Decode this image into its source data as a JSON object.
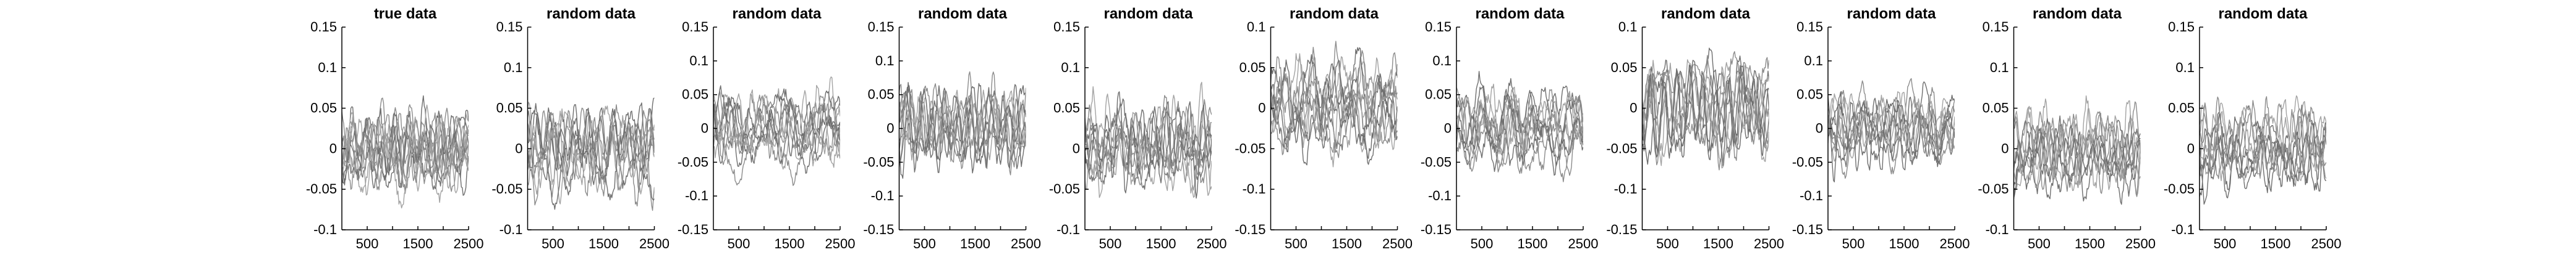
{
  "chart_data": [
    {
      "type": "line",
      "title": "true data",
      "xlim": [
        0,
        2500
      ],
      "ylim": [
        -0.1,
        0.15
      ],
      "xticks": [
        500,
        1000,
        1500,
        2000,
        2500
      ],
      "xtick_labels": [
        "500",
        "1500",
        "2500"
      ],
      "yticks": [
        -0.1,
        -0.05,
        0,
        0.05,
        0.1,
        0.15
      ],
      "ytick_labels": [
        "-0.1",
        "-0.05",
        "0",
        "0.05",
        "0.1",
        "0.15"
      ],
      "grid": false,
      "legend": "none",
      "n_series": 12,
      "seed": 11,
      "amplitude": 0.038,
      "color": "#7a7a7a"
    },
    {
      "type": "line",
      "title": "random data",
      "xlim": [
        0,
        2500
      ],
      "ylim": [
        -0.1,
        0.15
      ],
      "xticks": [
        500,
        1000,
        1500,
        2000,
        2500
      ],
      "xtick_labels": [
        "500",
        "1500",
        "2500"
      ],
      "yticks": [
        -0.1,
        -0.05,
        0,
        0.05,
        0.1,
        0.15
      ],
      "ytick_labels": [
        "-0.1",
        "-0.05",
        "0",
        "0.05",
        "0.1",
        "0.15"
      ],
      "grid": false,
      "legend": "none",
      "n_series": 10,
      "seed": 23,
      "amplitude": 0.04,
      "color": "#8a8a8a"
    },
    {
      "type": "line",
      "title": "random data",
      "xlim": [
        0,
        2500
      ],
      "ylim": [
        -0.15,
        0.15
      ],
      "xticks": [
        500,
        1000,
        1500,
        2000,
        2500
      ],
      "xtick_labels": [
        "500",
        "1500",
        "2500"
      ],
      "yticks": [
        -0.15,
        -0.1,
        -0.05,
        0,
        0.05,
        0.1,
        0.15
      ],
      "ytick_labels": [
        "-0.15",
        "-0.1",
        "-0.05",
        "0",
        "0.05",
        "0.1",
        "0.15"
      ],
      "grid": false,
      "legend": "none",
      "n_series": 10,
      "seed": 37,
      "amplitude": 0.045,
      "color": "#8a8a8a"
    },
    {
      "type": "line",
      "title": "random data",
      "xlim": [
        0,
        2500
      ],
      "ylim": [
        -0.15,
        0.15
      ],
      "xticks": [
        500,
        1000,
        1500,
        2000,
        2500
      ],
      "xtick_labels": [
        "500",
        "1500",
        "2500"
      ],
      "yticks": [
        -0.15,
        -0.1,
        -0.05,
        0,
        0.05,
        0.1,
        0.15
      ],
      "ytick_labels": [
        "-0.15",
        "-0.1",
        "-0.05",
        "0",
        "0.05",
        "0.1",
        "0.15"
      ],
      "grid": false,
      "legend": "none",
      "n_series": 10,
      "seed": 41,
      "amplitude": 0.045,
      "color": "#8a8a8a"
    },
    {
      "type": "line",
      "title": "random data",
      "xlim": [
        0,
        2500
      ],
      "ylim": [
        -0.1,
        0.15
      ],
      "xticks": [
        500,
        1000,
        1500,
        2000,
        2500
      ],
      "xtick_labels": [
        "500",
        "1500",
        "2500"
      ],
      "yticks": [
        -0.1,
        -0.05,
        0,
        0.05,
        0.1,
        0.15
      ],
      "ytick_labels": [
        "-0.1",
        "-0.05",
        "0",
        "0.05",
        "0.1",
        "0.15"
      ],
      "grid": false,
      "legend": "none",
      "n_series": 10,
      "seed": 53,
      "amplitude": 0.04,
      "color": "#8a8a8a"
    },
    {
      "type": "line",
      "title": "random data",
      "xlim": [
        0,
        2500
      ],
      "ylim": [
        -0.15,
        0.1
      ],
      "xticks": [
        500,
        1000,
        1500,
        2000,
        2500
      ],
      "xtick_labels": [
        "500",
        "1500",
        "2500"
      ],
      "yticks": [
        -0.15,
        -0.1,
        -0.05,
        0,
        0.05,
        0.1
      ],
      "ytick_labels": [
        "-0.15",
        "-0.1",
        "-0.05",
        "0",
        "0.05",
        "0.1"
      ],
      "grid": false,
      "legend": "none",
      "n_series": 10,
      "seed": 67,
      "amplitude": 0.045,
      "color": "#8a8a8a"
    },
    {
      "type": "line",
      "title": "random data",
      "xlim": [
        0,
        2500
      ],
      "ylim": [
        -0.15,
        0.15
      ],
      "xticks": [
        500,
        1000,
        1500,
        2000,
        2500
      ],
      "xtick_labels": [
        "500",
        "1500",
        "2500"
      ],
      "yticks": [
        -0.15,
        -0.1,
        -0.05,
        0,
        0.05,
        0.1,
        0.15
      ],
      "ytick_labels": [
        "-0.15",
        "-0.1",
        "-0.05",
        "0",
        "0.05",
        "0.1",
        "0.15"
      ],
      "grid": false,
      "legend": "none",
      "n_series": 10,
      "seed": 79,
      "amplitude": 0.045,
      "color": "#8a8a8a"
    },
    {
      "type": "line",
      "title": "random data",
      "xlim": [
        0,
        2500
      ],
      "ylim": [
        -0.15,
        0.1
      ],
      "xticks": [
        500,
        1000,
        1500,
        2000,
        2500
      ],
      "xtick_labels": [
        "500",
        "1500",
        "2500"
      ],
      "yticks": [
        -0.15,
        -0.1,
        -0.05,
        0,
        0.05,
        0.1
      ],
      "ytick_labels": [
        "-0.15",
        "-0.1",
        "-0.05",
        "0",
        "0.05",
        "0.1"
      ],
      "grid": false,
      "legend": "none",
      "n_series": 10,
      "seed": 83,
      "amplitude": 0.045,
      "color": "#8a8a8a"
    },
    {
      "type": "line",
      "title": "random data",
      "xlim": [
        0,
        2500
      ],
      "ylim": [
        -0.15,
        0.15
      ],
      "xticks": [
        500,
        1000,
        1500,
        2000,
        2500
      ],
      "xtick_labels": [
        "500",
        "1500",
        "2500"
      ],
      "yticks": [
        -0.15,
        -0.1,
        -0.05,
        0,
        0.05,
        0.1,
        0.15
      ],
      "ytick_labels": [
        "-0.15",
        "-0.1",
        "-0.05",
        "0",
        "0.05",
        "0.1",
        "0.15"
      ],
      "grid": false,
      "legend": "none",
      "n_series": 10,
      "seed": 97,
      "amplitude": 0.04,
      "color": "#8a8a8a"
    },
    {
      "type": "line",
      "title": "random data",
      "xlim": [
        0,
        2500
      ],
      "ylim": [
        -0.1,
        0.15
      ],
      "xticks": [
        500,
        1000,
        1500,
        2000,
        2500
      ],
      "xtick_labels": [
        "500",
        "1500",
        "2500"
      ],
      "yticks": [
        -0.1,
        -0.05,
        0,
        0.05,
        0.1,
        0.15
      ],
      "ytick_labels": [
        "-0.1",
        "-0.05",
        "0",
        "0.05",
        "0.1",
        "0.15"
      ],
      "grid": false,
      "legend": "none",
      "n_series": 10,
      "seed": 103,
      "amplitude": 0.04,
      "color": "#8a8a8a"
    },
    {
      "type": "line",
      "title": "random data",
      "xlim": [
        0,
        2500
      ],
      "ylim": [
        -0.1,
        0.15
      ],
      "xticks": [
        500,
        1000,
        1500,
        2000,
        2500
      ],
      "xtick_labels": [
        "500",
        "1500",
        "2500"
      ],
      "yticks": [
        -0.1,
        -0.05,
        0,
        0.05,
        0.1,
        0.15
      ],
      "ytick_labels": [
        "-0.1",
        "-0.05",
        "0",
        "0.05",
        "0.1",
        "0.15"
      ],
      "grid": false,
      "legend": "none",
      "n_series": 10,
      "seed": 113,
      "amplitude": 0.04,
      "color": "#8a8a8a"
    }
  ]
}
